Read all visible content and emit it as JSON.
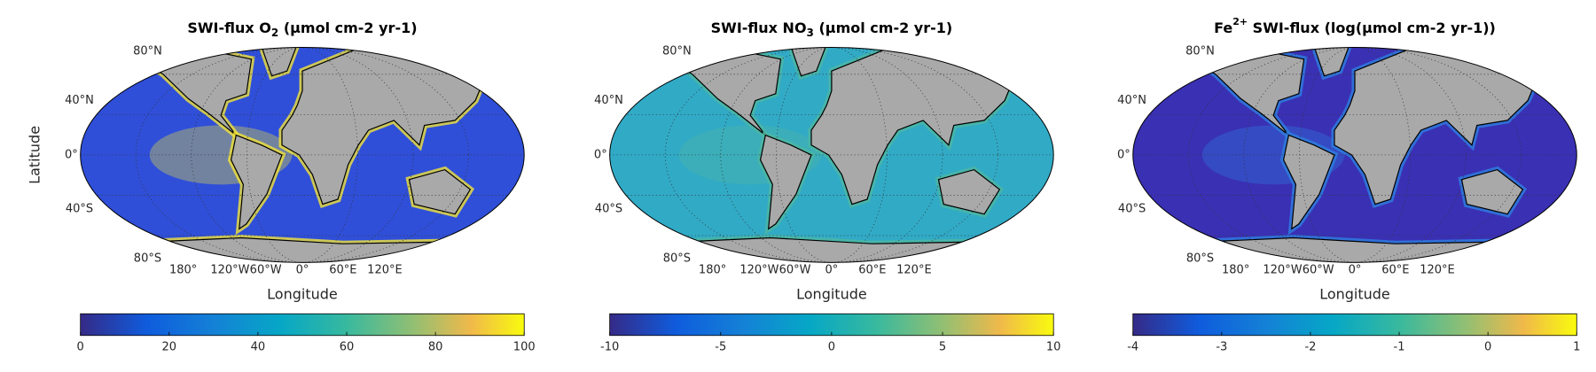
{
  "panels": [
    {
      "title": {
        "prefix": "SWI-flux O",
        "subscript": "2",
        "suffix": " (μmol cm-2 yr-1)"
      },
      "ylabel": "Latitude",
      "xlabel": "Longitude",
      "lat_labels": [
        "80°N",
        "40°N",
        "0°",
        "40°S",
        "80°S"
      ],
      "lon_labels": [
        "180°",
        "120°W",
        "60°W",
        "0°",
        "60°E",
        "120°E"
      ],
      "colorbar": {
        "clim": [
          0,
          100
        ],
        "ticks": [
          0,
          20,
          40,
          60,
          80,
          100
        ]
      }
    },
    {
      "title": {
        "prefix": "SWI-flux NO",
        "subscript": "3",
        "suffix": " (μmol cm-2 yr-1)"
      },
      "xlabel": "Longitude",
      "lat_labels": [
        "80°N",
        "40°N",
        "0°",
        "40°S",
        "80°S"
      ],
      "lon_labels": [
        "180°",
        "120°W",
        "60°W",
        "0°",
        "60°E",
        "120°E"
      ],
      "colorbar": {
        "clim": [
          -10,
          10
        ],
        "ticks": [
          -10,
          -5,
          0,
          5,
          10
        ]
      }
    },
    {
      "title": {
        "prefix": "Fe",
        "superscript": "2+",
        "suffix": " SWI-flux (log(μmol cm-2 yr-1))"
      },
      "xlabel": "Longitude",
      "lat_labels": [
        "80°N",
        "40°N",
        "0°",
        "40°S",
        "80°S"
      ],
      "lon_labels": [
        "180°",
        "120°W",
        "60°W",
        "0°",
        "60°E",
        "120°E"
      ],
      "colorbar": {
        "clim": [
          -4,
          1
        ],
        "ticks": [
          -4,
          -3,
          -2,
          -1,
          0,
          1
        ]
      }
    }
  ]
}
